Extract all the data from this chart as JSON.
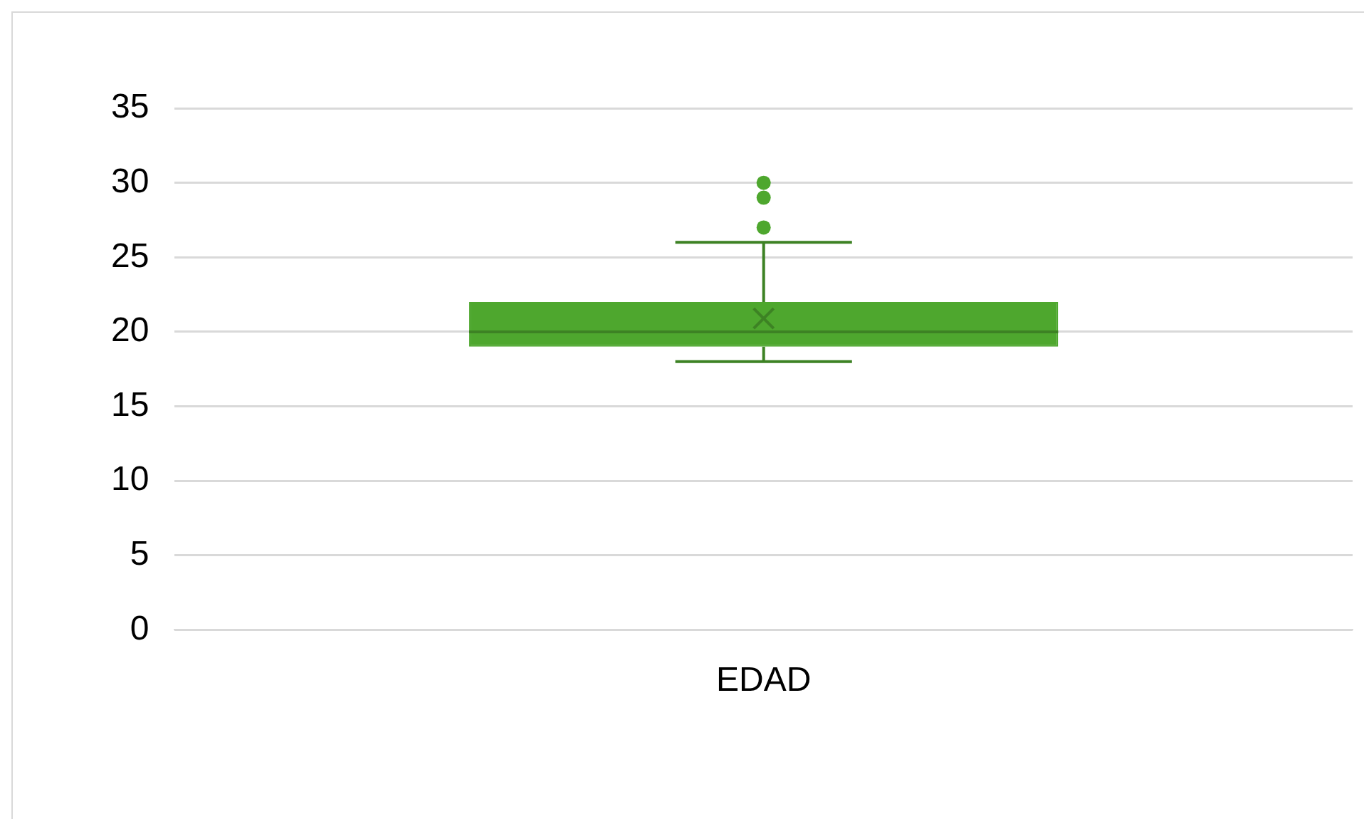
{
  "chart_data": {
    "type": "box",
    "categories": [
      "EDAD"
    ],
    "color": "#4ea72e",
    "boxes": [
      {
        "low": 18,
        "q1": 19,
        "median": 20,
        "q3": 22,
        "high": 26,
        "mean": 20.9,
        "outliers": [
          27,
          29,
          30
        ]
      }
    ],
    "ylim": [
      0,
      35
    ],
    "yticks": [
      0,
      5,
      10,
      15,
      20,
      25,
      30,
      35
    ],
    "grid": "y",
    "legend": false
  }
}
